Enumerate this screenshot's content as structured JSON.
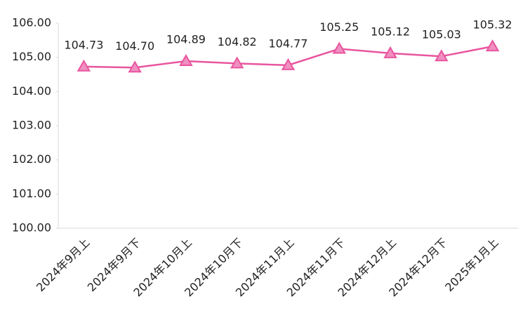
{
  "chart_data": {
    "type": "line",
    "categories": [
      "2024年9月上",
      "2024年9月下",
      "2024年10月上",
      "2024年10月下",
      "2024年11月上",
      "2024年11月下",
      "2024年12月上",
      "2024年12月下",
      "2025年1月上"
    ],
    "values": [
      104.73,
      104.7,
      104.89,
      104.82,
      104.77,
      105.25,
      105.12,
      105.03,
      105.32
    ],
    "value_labels": [
      "104.73",
      "104.70",
      "104.89",
      "104.82",
      "104.77",
      "105.25",
      "105.12",
      "105.03",
      "105.32"
    ],
    "color": "#e8559f",
    "ylim": [
      100,
      106
    ],
    "yticks": [
      {
        "value": 100,
        "label": "100.00"
      },
      {
        "value": 101,
        "label": "101.00"
      },
      {
        "value": 102,
        "label": "102.00"
      },
      {
        "value": 103,
        "label": "103.00"
      },
      {
        "value": 104,
        "label": "104.00"
      },
      {
        "value": 105,
        "label": "105.00"
      },
      {
        "value": 106,
        "label": "106.00"
      }
    ],
    "grid": false
  }
}
